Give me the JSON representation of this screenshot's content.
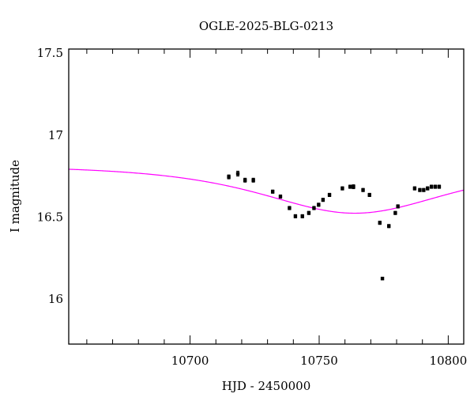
{
  "chart_data": {
    "type": "scatter",
    "title": "OGLE-2025-BLG-0213",
    "xlabel": "HJD - 2450000",
    "ylabel": "I magnitude",
    "xlim": [
      10653,
      10806
    ],
    "ylim": [
      17.52,
      15.72
    ],
    "y_inverted": true,
    "x_ticks": [
      10700,
      10750,
      10800
    ],
    "x_tick_labels": [
      "10700",
      "10750",
      "10800"
    ],
    "y_ticks": [
      16,
      16.5,
      17,
      17.5
    ],
    "y_tick_labels": [
      "16",
      "16.5",
      "17",
      "17.5"
    ],
    "grid": false,
    "colors": {
      "model": "#ff00ff",
      "points": "#000000"
    },
    "series": [
      {
        "type": "scatter_errorbar",
        "points": [
          {
            "x": 10715.0,
            "y": 16.74,
            "err": 0.012
          },
          {
            "x": 10718.5,
            "y": 16.76,
            "err": 0.015
          },
          {
            "x": 10721.3,
            "y": 16.72,
            "err": 0.012
          },
          {
            "x": 10724.5,
            "y": 16.72,
            "err": 0.012
          },
          {
            "x": 10732.0,
            "y": 16.65,
            "err": 0.01
          },
          {
            "x": 10735.0,
            "y": 16.62,
            "err": 0.01
          },
          {
            "x": 10738.5,
            "y": 16.55,
            "err": 0.01
          },
          {
            "x": 10740.8,
            "y": 16.5,
            "err": 0.01
          },
          {
            "x": 10743.5,
            "y": 16.5,
            "err": 0.01
          },
          {
            "x": 10746.0,
            "y": 16.52,
            "err": 0.01
          },
          {
            "x": 10748.0,
            "y": 16.55,
            "err": 0.01
          },
          {
            "x": 10749.8,
            "y": 16.57,
            "err": 0.01
          },
          {
            "x": 10751.5,
            "y": 16.6,
            "err": 0.01
          },
          {
            "x": 10754.0,
            "y": 16.63,
            "err": 0.01
          },
          {
            "x": 10759.0,
            "y": 16.67,
            "err": 0.01
          },
          {
            "x": 10762.0,
            "y": 16.68,
            "err": 0.01
          },
          {
            "x": 10763.3,
            "y": 16.68,
            "err": 0.012
          },
          {
            "x": 10767.0,
            "y": 16.66,
            "err": 0.01
          },
          {
            "x": 10769.5,
            "y": 16.63,
            "err": 0.01
          },
          {
            "x": 10773.5,
            "y": 16.46,
            "err": 0.01
          },
          {
            "x": 10774.5,
            "y": 16.12,
            "err": 0.008
          },
          {
            "x": 10777.0,
            "y": 16.44,
            "err": 0.01
          },
          {
            "x": 10779.5,
            "y": 16.52,
            "err": 0.01
          },
          {
            "x": 10780.5,
            "y": 16.56,
            "err": 0.01
          },
          {
            "x": 10787.0,
            "y": 16.67,
            "err": 0.01
          },
          {
            "x": 10789.0,
            "y": 16.66,
            "err": 0.01
          },
          {
            "x": 10790.5,
            "y": 16.66,
            "err": 0.01
          },
          {
            "x": 10792.0,
            "y": 16.67,
            "err": 0.01
          },
          {
            "x": 10793.5,
            "y": 16.68,
            "err": 0.01
          },
          {
            "x": 10795.0,
            "y": 16.68,
            "err": 0.01
          },
          {
            "x": 10796.5,
            "y": 16.68,
            "err": 0.01
          }
        ]
      },
      {
        "type": "line",
        "model": {
          "t0": 10763.8,
          "tE": 43,
          "u0": 1.05,
          "base": 16.81,
          "fs": 1.0
        }
      }
    ]
  }
}
